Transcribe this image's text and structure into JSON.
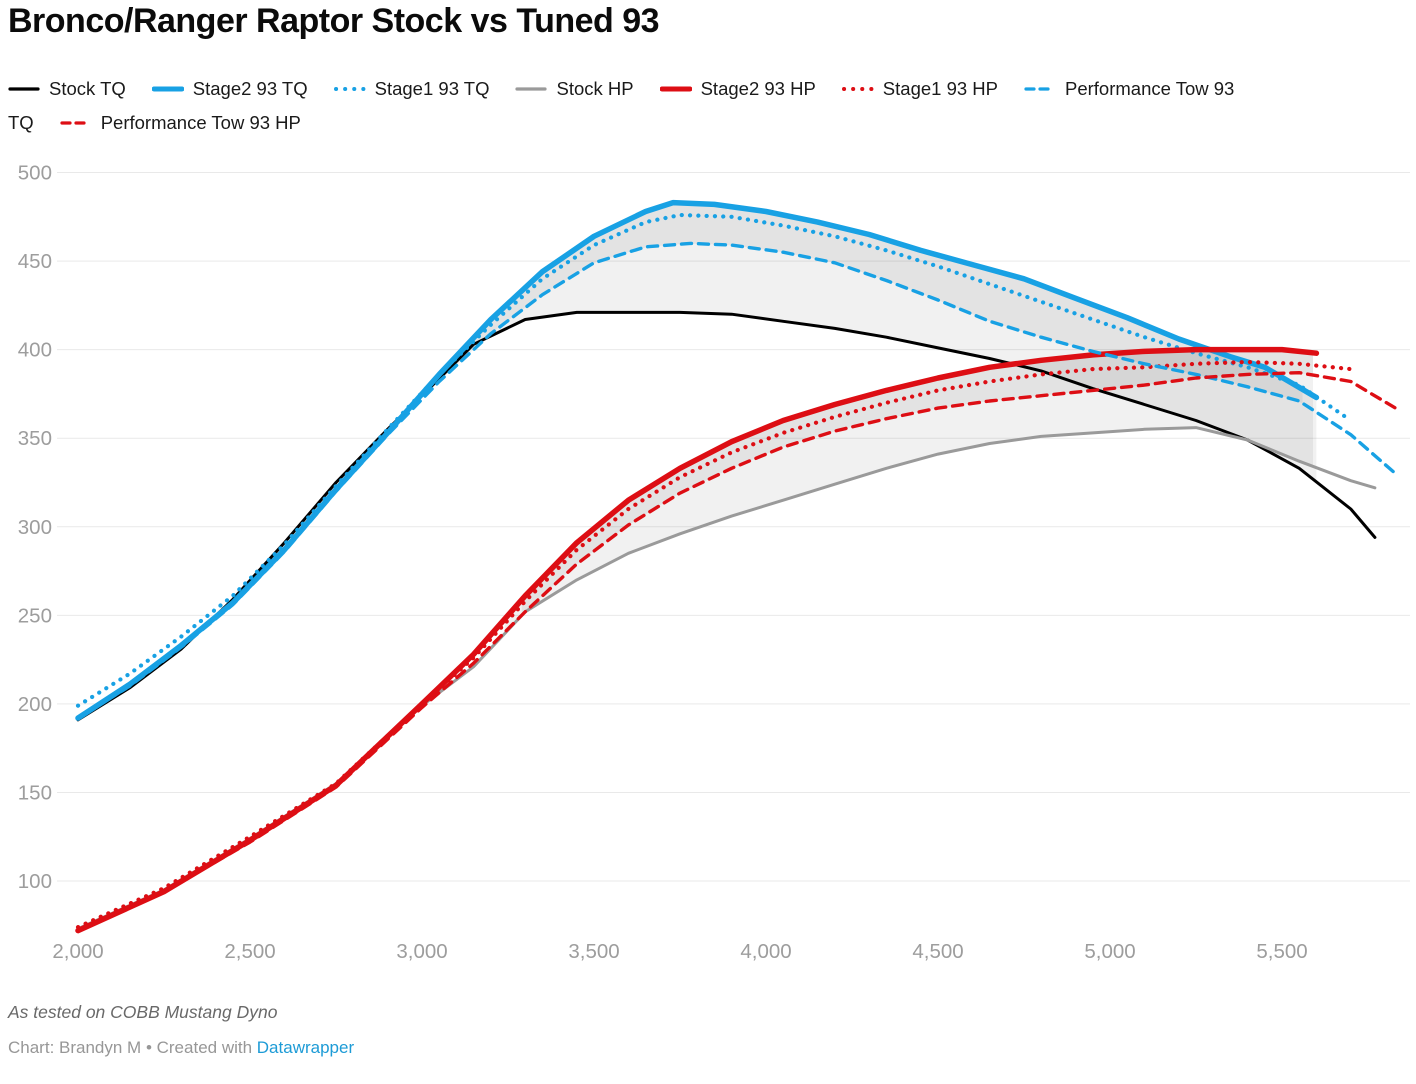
{
  "title": "Bronco/Ranger Raptor Stock vs Tuned 93",
  "colors": {
    "blue": "#18a1e4",
    "red": "#dd0e14",
    "gray": "#9a9a9a",
    "black": "#000000",
    "grid": "#e9e9e9",
    "axis_label": "#9d9d9d",
    "legend_text": "#1a1a1a",
    "note_text": "#696969",
    "byline_text": "#979797",
    "link": "#1d9bd6",
    "shade": "rgba(0,0,0,0.054)"
  },
  "legend": {
    "rows": [
      [
        {
          "label": "Stock TQ",
          "series": "stock_tq"
        },
        {
          "label": "Stage2 93 TQ",
          "series": "stage2_tq"
        },
        {
          "label": "Stage1 93 TQ",
          "series": "stage1_tq"
        },
        {
          "label": "Stock HP",
          "series": "stock_hp"
        },
        {
          "label": "Stage2 93 HP",
          "series": "stage2_hp"
        },
        {
          "label": "Stage1 93 HP",
          "series": "stage1_hp"
        },
        {
          "label": "Performance Tow 93",
          "series": "perftow_tq"
        }
      ],
      [
        {
          "label": "TQ",
          "series": null
        },
        {
          "label": "Performance Tow 93 HP",
          "series": "perftow_hp"
        }
      ]
    ]
  },
  "chart_data": {
    "type": "line",
    "title": "Bronco/Ranger Raptor Stock vs Tuned 93",
    "xlabel": "",
    "ylabel": "",
    "grid": "horizontal",
    "legend_position": "top",
    "xlim": [
      2000,
      5870
    ],
    "ylim": [
      100,
      500
    ],
    "x_ticks": [
      2000,
      2500,
      3000,
      3500,
      4000,
      4500,
      5000,
      5500
    ],
    "x_tick_labels": [
      "2,000",
      "2,500",
      "3,000",
      "3,500",
      "4,000",
      "4,500",
      "5,000",
      "5,500"
    ],
    "y_ticks": [
      100,
      150,
      200,
      250,
      300,
      350,
      400,
      450,
      500
    ],
    "series": [
      {
        "key": "stock_tq",
        "name": "Stock TQ",
        "color": "#000000",
        "style": "solid",
        "thick": false,
        "x": [
          2000,
          2150,
          2300,
          2450,
          2600,
          2750,
          2900,
          3000,
          3150,
          3300,
          3450,
          3600,
          3750,
          3900,
          4050,
          4200,
          4350,
          4500,
          4650,
          4800,
          4950,
          5100,
          5250,
          5400,
          5550,
          5700,
          5770
        ],
        "values": [
          191,
          209,
          231,
          259,
          291,
          325,
          355,
          374,
          403,
          417,
          421,
          421,
          421,
          420,
          416,
          412,
          407,
          401,
          395,
          388,
          378,
          369,
          360,
          349,
          333,
          310,
          294
        ]
      },
      {
        "key": "stage2_tq",
        "name": "Stage2 93 TQ",
        "color": "#18a1e4",
        "style": "solid",
        "thick": true,
        "x": [
          2000,
          2150,
          2300,
          2450,
          2600,
          2750,
          2900,
          3050,
          3200,
          3350,
          3500,
          3650,
          3730,
          3850,
          4000,
          4150,
          4300,
          4450,
          4600,
          4750,
          4900,
          5050,
          5200,
          5350,
          5450,
          5600
        ],
        "values": [
          192,
          211,
          233,
          257,
          287,
          321,
          353,
          386,
          417,
          444,
          464,
          478,
          483,
          482,
          478,
          472,
          465,
          456,
          448,
          440,
          429,
          418,
          406,
          396,
          390,
          373
        ]
      },
      {
        "key": "stage1_tq",
        "name": "Stage1 93 TQ",
        "color": "#18a1e4",
        "style": "dotted",
        "thick": false,
        "x": [
          2000,
          2150,
          2300,
          2450,
          2600,
          2750,
          2900,
          3050,
          3200,
          3350,
          3500,
          3650,
          3750,
          3900,
          4050,
          4200,
          4350,
          4500,
          4650,
          4800,
          4950,
          5100,
          5250,
          5400,
          5550,
          5700
        ],
        "values": [
          199,
          217,
          238,
          261,
          290,
          323,
          355,
          386,
          414,
          440,
          459,
          472,
          476,
          475,
          470,
          464,
          456,
          447,
          437,
          427,
          417,
          407,
          398,
          390,
          380,
          360
        ]
      },
      {
        "key": "stock_hp",
        "name": "Stock HP",
        "color": "#9a9a9a",
        "style": "solid",
        "thick": false,
        "x": [
          2000,
          2250,
          2500,
          2750,
          3000,
          3150,
          3300,
          3450,
          3600,
          3750,
          3900,
          4050,
          4200,
          4350,
          4500,
          4650,
          4800,
          4950,
          5100,
          5250,
          5400,
          5550,
          5700,
          5770
        ],
        "values": [
          73,
          95,
          124,
          155,
          199,
          221,
          252,
          270,
          285,
          296,
          306,
          315,
          324,
          333,
          341,
          347,
          351,
          353,
          355,
          356,
          349,
          337,
          326,
          322
        ]
      },
      {
        "key": "stage2_hp",
        "name": "Stage2 93 HP",
        "color": "#dd0e14",
        "style": "solid",
        "thick": true,
        "x": [
          2000,
          2250,
          2500,
          2750,
          3000,
          3150,
          3300,
          3450,
          3600,
          3750,
          3900,
          4050,
          4200,
          4350,
          4500,
          4650,
          4800,
          4950,
          5100,
          5250,
          5400,
          5500,
          5600
        ],
        "values": [
          72,
          94,
          123,
          154,
          200,
          228,
          261,
          291,
          315,
          333,
          348,
          360,
          369,
          377,
          384,
          390,
          394,
          397,
          399,
          400,
          400,
          400,
          398
        ]
      },
      {
        "key": "stage1_hp",
        "name": "Stage1 93 HP",
        "color": "#dd0e14",
        "style": "dotted",
        "thick": false,
        "x": [
          2000,
          2250,
          2500,
          2750,
          3000,
          3150,
          3300,
          3450,
          3600,
          3750,
          3900,
          4050,
          4200,
          4350,
          4500,
          4650,
          4800,
          4950,
          5100,
          5250,
          5400,
          5550,
          5700
        ],
        "values": [
          74,
          96,
          125,
          155,
          200,
          226,
          258,
          287,
          310,
          328,
          342,
          353,
          362,
          370,
          377,
          382,
          386,
          389,
          390,
          392,
          393,
          392,
          389
        ]
      },
      {
        "key": "perftow_tq",
        "name": "Performance Tow 93 TQ",
        "color": "#18a1e4",
        "style": "dashed",
        "thick": false,
        "x": [
          2000,
          2150,
          2300,
          2450,
          2600,
          2750,
          2900,
          3050,
          3200,
          3350,
          3500,
          3650,
          3780,
          3900,
          4050,
          4200,
          4350,
          4500,
          4650,
          4800,
          4950,
          5100,
          5250,
          5400,
          5550,
          5700,
          5830
        ],
        "values": [
          192,
          210,
          232,
          256,
          286,
          320,
          352,
          382,
          409,
          431,
          449,
          458,
          460,
          459,
          455,
          449,
          439,
          428,
          416,
          407,
          399,
          392,
          386,
          379,
          371,
          352,
          330
        ]
      },
      {
        "key": "perftow_hp",
        "name": "Performance Tow 93 HP",
        "color": "#dd0e14",
        "style": "dashed",
        "thick": false,
        "x": [
          2000,
          2250,
          2500,
          2750,
          3000,
          3150,
          3300,
          3450,
          3600,
          3750,
          3900,
          4050,
          4200,
          4350,
          4500,
          4650,
          4800,
          4950,
          5100,
          5250,
          5400,
          5550,
          5700,
          5830
        ],
        "values": [
          72,
          94,
          122,
          153,
          198,
          223,
          252,
          279,
          301,
          319,
          333,
          345,
          354,
          361,
          367,
          371,
          374,
          377,
          380,
          384,
          386,
          387,
          382,
          367
        ]
      }
    ],
    "shaded_deltas": [
      {
        "upper": "stage2_tq",
        "lower": "stock_tq",
        "from": 3000,
        "to": 5600
      },
      {
        "upper": "stage2_tq",
        "lower": "perftow_tq",
        "from": 3060,
        "to": 5600
      },
      {
        "upper": "stage2_hp",
        "lower": "stock_hp",
        "from": 3240,
        "to": 5600
      },
      {
        "upper": "stage2_hp",
        "lower": "perftow_hp",
        "from": 3290,
        "to": 5600
      }
    ]
  },
  "footer": {
    "note": "As tested on COBB Mustang Dyno",
    "byline_prefix": "Chart: Brandyn M • Created with ",
    "link_label": "Datawrapper"
  }
}
